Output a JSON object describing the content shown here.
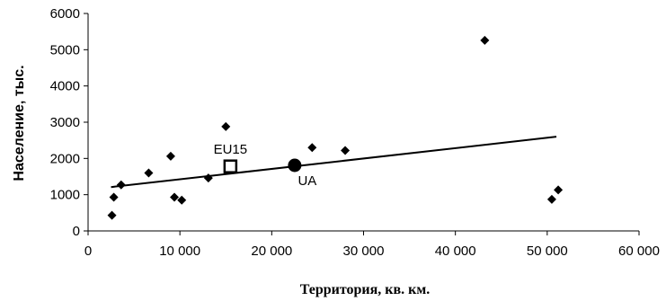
{
  "chart_data": {
    "type": "scatter",
    "xlabel": "Территория, кв. км.",
    "ylabel": "Население, тыс.",
    "xlim": [
      0,
      60000
    ],
    "ylim": [
      0,
      6000
    ],
    "x_ticks": [
      "0",
      "10 000",
      "20 000",
      "30 000",
      "40 000",
      "50 000",
      "60 000"
    ],
    "y_ticks": [
      "0",
      "1000",
      "2000",
      "3000",
      "4000",
      "5000",
      "6000"
    ],
    "grid": false,
    "points": [
      {
        "x": 2600,
        "y": 430
      },
      {
        "x": 2800,
        "y": 930
      },
      {
        "x": 3600,
        "y": 1270
      },
      {
        "x": 6600,
        "y": 1600
      },
      {
        "x": 9000,
        "y": 2060
      },
      {
        "x": 9400,
        "y": 930
      },
      {
        "x": 10200,
        "y": 850
      },
      {
        "x": 13100,
        "y": 1460
      },
      {
        "x": 15000,
        "y": 2880
      },
      {
        "x": 24400,
        "y": 2300
      },
      {
        "x": 28000,
        "y": 2220
      },
      {
        "x": 43200,
        "y": 5260
      },
      {
        "x": 50500,
        "y": 870
      },
      {
        "x": 51200,
        "y": 1130
      }
    ],
    "highlights": [
      {
        "label": "EU15",
        "x": 15500,
        "y": 1780,
        "marker": "square"
      },
      {
        "label": "UA",
        "x": 22500,
        "y": 1810,
        "marker": "circle"
      }
    ],
    "trendline": {
      "x": [
        2500,
        51000
      ],
      "y": [
        1210,
        2600
      ]
    }
  }
}
